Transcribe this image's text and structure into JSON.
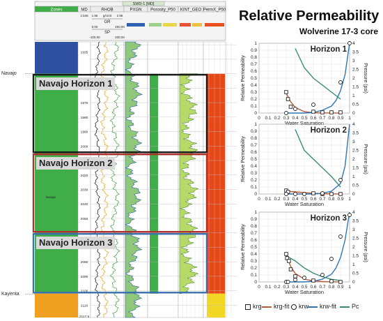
{
  "title": "Relative Permeability",
  "subtitle": "Wolverine 17-3 core",
  "colors": {
    "krg": "#b85c38",
    "krw": "#2e75b6",
    "pc": "#3a8a7a"
  },
  "log_panel": {
    "well_label": "SWD-1 [MD]",
    "column_headers": {
      "zones": "Zones",
      "md": "MD",
      "rhob": "RHOB",
      "gr": "GR",
      "sp": "SP",
      "pxgn": "PXGN",
      "porosity": "Porosity_P50",
      "kint": "KINT_GEO",
      "permx": "PermX_P50"
    },
    "scale_labels": {
      "md_scale": "1:546",
      "rhob_min": "1.95",
      "rhob_mid": "g/cm3",
      "rhob_max": "2.95",
      "gr_min": "0.00",
      "gr_max": "250.00",
      "sp_min": "-100.00",
      "sp_max": "200.00"
    },
    "left_labels": {
      "navajo": "Navajo",
      "kayenta": "Kayenta"
    },
    "zone_inner_label": "Navajo",
    "depth_ticks": [
      {
        "label": "1935",
        "d": 1935
      },
      {
        "label": "1970",
        "d": 1970
      },
      {
        "label": "1980",
        "d": 1980
      },
      {
        "label": "1990",
        "d": 1990
      },
      {
        "label": "2000",
        "d": 2000
      },
      {
        "label": "2020",
        "d": 2020
      },
      {
        "label": "2030",
        "d": 2030
      },
      {
        "label": "2040",
        "d": 2040
      },
      {
        "label": "2050",
        "d": 2050
      },
      {
        "label": "2070",
        "d": 2070
      },
      {
        "label": "2080",
        "d": 2080
      },
      {
        "label": "2090",
        "d": 2090
      },
      {
        "label": "2100",
        "d": 2100
      },
      {
        "label": "2110",
        "d": 2110
      },
      {
        "label": "2117.5",
        "d": 2117.5
      }
    ],
    "horizons": [
      {
        "label": "Navajo Horizon 1",
        "color": "#1a1a1a",
        "top": 1950,
        "bottom": 2005
      },
      {
        "label": "Navajo Horizon 2",
        "color": "#b03030",
        "top": 2005,
        "bottom": 2060
      },
      {
        "label": "Navajo Horizon 3",
        "color": "#3a6fb0",
        "top": 2060,
        "bottom": 2102
      }
    ]
  },
  "chart_axes": {
    "xlabel": "Water Saturation",
    "ylabel_left": "Relative Permeability",
    "ylabel_right": "Pressure (psi)",
    "x_ticks": [
      "0",
      "0.1",
      "0.2",
      "0.3",
      "0.4",
      "0.5",
      "0.6",
      "0.7",
      "0.8",
      "0.9",
      "1"
    ],
    "y_left_ticks": [
      "0",
      "0.1",
      "0.2",
      "0.3",
      "0.4",
      "0.5",
      "0.6",
      "0.7",
      "0.8",
      "0.9",
      "1"
    ],
    "y_right_ticks": [
      "0",
      "0.5",
      "1",
      "1.5",
      "2",
      "2.5",
      "3",
      "3.5",
      "4"
    ]
  },
  "chart_data": [
    {
      "type": "scatter",
      "title": "Horizon 1",
      "xlabel": "Water Saturation",
      "ylabel": "Relative Permeability",
      "y2label": "Pressure (psi)",
      "xlim": [
        0,
        1
      ],
      "ylim": [
        0,
        1
      ],
      "y2lim": [
        0,
        4
      ],
      "series": [
        {
          "name": "krg",
          "kind": "points",
          "x": [
            0.3,
            0.32,
            0.35,
            0.6,
            0.7,
            0.8,
            0.9
          ],
          "y": [
            0.3,
            0.2,
            0.09,
            0.02,
            0.01,
            0.01,
            0.01
          ]
        },
        {
          "name": "krg-fit",
          "kind": "line",
          "x": [
            0.3,
            0.35,
            0.4,
            0.5,
            0.6,
            0.7,
            0.8,
            0.9
          ],
          "y": [
            0.28,
            0.16,
            0.08,
            0.02,
            0.005,
            0.002,
            0.001,
            0.0
          ]
        },
        {
          "name": "krw",
          "kind": "points",
          "x": [
            0.3,
            0.4,
            0.6,
            0.9,
            1.0
          ],
          "y": [
            0.0,
            0.06,
            0.12,
            0.44,
            1.0
          ]
        },
        {
          "name": "krw-fit",
          "kind": "line",
          "x": [
            0.3,
            0.5,
            0.6,
            0.7,
            0.8,
            0.85,
            0.9,
            0.95,
            1.0
          ],
          "y": [
            0.0,
            0.0,
            0.01,
            0.04,
            0.1,
            0.18,
            0.32,
            0.55,
            1.0
          ]
        },
        {
          "name": "Pc",
          "kind": "line",
          "axis": "right",
          "x": [
            0.4,
            0.5,
            0.6,
            0.7,
            0.8,
            0.9
          ],
          "y": [
            3.7,
            2.6,
            2.0,
            1.6,
            1.2,
            0.8
          ]
        }
      ]
    },
    {
      "type": "scatter",
      "title": "Horizon 2",
      "xlabel": "Water Saturation",
      "ylabel": "Relative Permeability",
      "y2label": "Pressure (psi)",
      "xlim": [
        0,
        1
      ],
      "ylim": [
        0,
        1
      ],
      "y2lim": [
        0,
        4
      ],
      "series": [
        {
          "name": "krg",
          "kind": "points",
          "x": [
            0.3,
            0.32,
            0.6,
            0.7,
            0.8,
            0.9
          ],
          "y": [
            0.05,
            0.03,
            0.01,
            0.0,
            0.0,
            0.0
          ]
        },
        {
          "name": "krg-fit",
          "kind": "line",
          "x": [
            0.3,
            0.4,
            0.5,
            0.6,
            0.7,
            0.8,
            0.9
          ],
          "y": [
            0.04,
            0.03,
            0.02,
            0.01,
            0.005,
            0.002,
            0.0
          ]
        },
        {
          "name": "krw",
          "kind": "points",
          "x": [
            0.3,
            0.4,
            0.5,
            0.7,
            0.9
          ],
          "y": [
            0.0,
            0.0,
            0.0,
            0.01,
            0.2
          ]
        },
        {
          "name": "krw-fit",
          "kind": "line",
          "x": [
            0.3,
            0.6,
            0.7,
            0.8,
            0.9,
            0.95,
            1.0
          ],
          "y": [
            0.0,
            0.0,
            0.01,
            0.04,
            0.15,
            0.4,
            1.0
          ]
        },
        {
          "name": "Pc",
          "kind": "line",
          "axis": "right",
          "x": [
            0.4,
            0.5,
            0.6,
            0.7,
            0.8,
            0.9
          ],
          "y": [
            3.7,
            2.5,
            2.0,
            1.5,
            1.0,
            0.4
          ]
        }
      ]
    },
    {
      "type": "scatter",
      "title": "Horizon 3",
      "xlabel": "Water Saturation",
      "ylabel": "Relative Permeability",
      "y2label": "Pressure (psi)",
      "xlim": [
        0,
        1
      ],
      "ylim": [
        0,
        1
      ],
      "y2lim": [
        0,
        4
      ],
      "series": [
        {
          "name": "krg",
          "kind": "points",
          "x": [
            0.3,
            0.31,
            0.33,
            0.35,
            0.4,
            0.6,
            0.8,
            0.9
          ],
          "y": [
            0.4,
            0.34,
            0.3,
            0.18,
            0.08,
            0.02,
            0.01,
            0.0
          ]
        },
        {
          "name": "krg-fit",
          "kind": "line",
          "x": [
            0.3,
            0.35,
            0.4,
            0.5,
            0.6,
            0.7,
            0.8,
            0.9
          ],
          "y": [
            0.38,
            0.22,
            0.12,
            0.04,
            0.015,
            0.005,
            0.002,
            0.0
          ]
        },
        {
          "name": "krw",
          "kind": "points",
          "x": [
            0.3,
            0.32,
            0.4,
            0.5,
            0.7,
            0.8,
            0.9,
            1.0
          ],
          "y": [
            0.0,
            0.0,
            0.03,
            0.06,
            0.1,
            0.33,
            0.65,
            0.96
          ]
        },
        {
          "name": "krw-fit",
          "kind": "line",
          "x": [
            0.3,
            0.5,
            0.6,
            0.7,
            0.8,
            0.85,
            0.9,
            0.95,
            1.0
          ],
          "y": [
            0.0,
            0.0,
            0.01,
            0.04,
            0.11,
            0.2,
            0.35,
            0.6,
            1.0
          ]
        },
        {
          "name": "Pc",
          "kind": "line",
          "axis": "right",
          "x": [
            0.3,
            0.4,
            0.5,
            0.6,
            0.7,
            0.8,
            0.9
          ],
          "y": [
            1.5,
            1.2,
            0.8,
            0.5,
            0.3,
            0.15,
            0.08
          ]
        }
      ]
    }
  ],
  "legend": [
    {
      "name": "krg",
      "marker": "square"
    },
    {
      "name": "krg-fit",
      "marker": "line",
      "color": "#b85c38"
    },
    {
      "name": "krw",
      "marker": "circle"
    },
    {
      "name": "krw-fit",
      "marker": "line",
      "color": "#2e75b6"
    },
    {
      "name": "Pc",
      "marker": "line",
      "color": "#3a8a7a"
    }
  ]
}
